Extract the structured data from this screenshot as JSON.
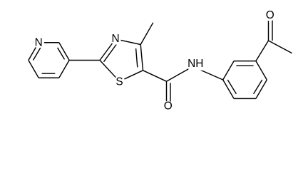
{
  "atoms": {
    "pyridine_n": "N",
    "thiazole_n": "N",
    "thiazole_s": "S",
    "amide_o": "O",
    "amide_nh": "NH",
    "acetyl_o": "O"
  }
}
